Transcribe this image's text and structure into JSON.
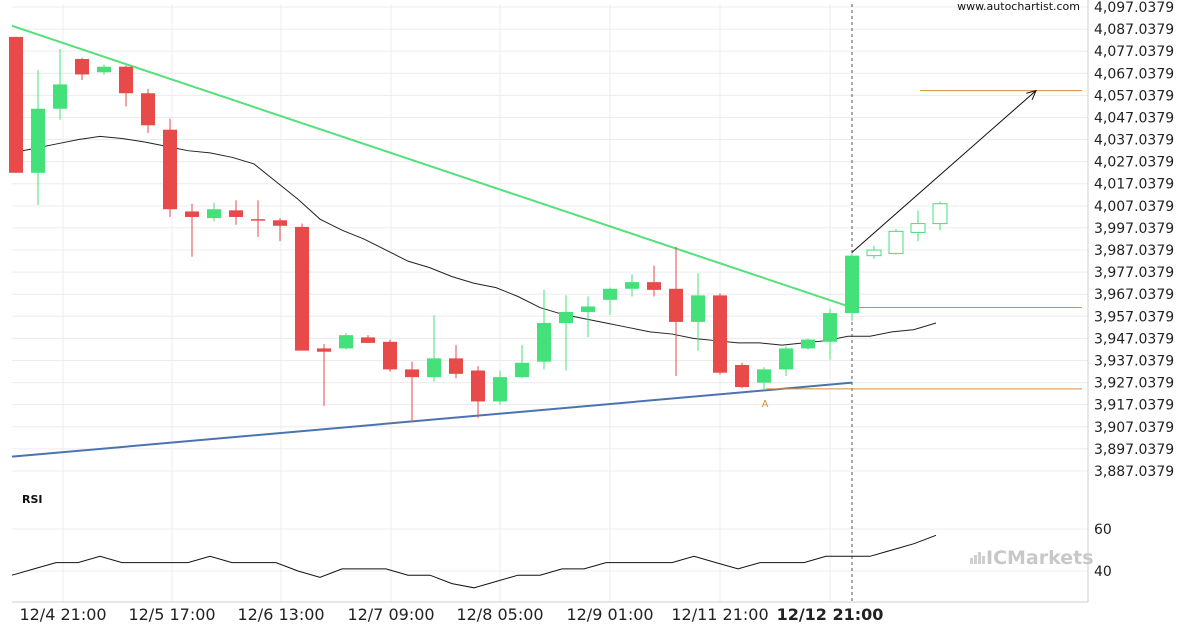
{
  "chart_data": {
    "type": "candlestick",
    "source": "www.autochartist.com",
    "brand": "ICMarkets",
    "price_axis": {
      "min": 3882.0379,
      "max": 4097.0379,
      "ticks": [
        "4,097.0379",
        "4,087.0379",
        "4,077.0379",
        "4,067.0379",
        "4,057.0379",
        "4,047.0379",
        "4,037.0379",
        "4,027.0379",
        "4,017.0379",
        "4,007.0379",
        "3,997.0379",
        "3,987.0379",
        "3,977.0379",
        "3,967.0379",
        "3,957.0379",
        "3,947.0379",
        "3,937.0379",
        "3,927.0379",
        "3,917.0379",
        "3,907.0379",
        "3,897.0379",
        "3,887.0379"
      ]
    },
    "rsi": {
      "label": "RSI",
      "ticks": [
        "60",
        "40"
      ],
      "values": [
        38,
        41,
        44,
        44,
        47,
        44,
        44,
        44,
        44,
        47,
        44,
        44,
        44,
        40,
        37,
        41,
        41,
        41,
        38,
        38,
        34,
        32,
        35,
        38,
        38,
        41,
        41,
        44,
        44,
        44,
        44,
        47,
        44,
        41,
        44,
        44,
        44,
        47,
        47,
        47,
        50,
        53,
        57
      ]
    },
    "x_ticks": [
      {
        "label": "12/4 21:00",
        "bold": false
      },
      {
        "label": "12/5 17:00",
        "bold": false
      },
      {
        "label": "12/6 13:00",
        "bold": false
      },
      {
        "label": "12/7 09:00",
        "bold": false
      },
      {
        "label": "12/8 05:00",
        "bold": false
      },
      {
        "label": "12/9 01:00",
        "bold": false
      },
      {
        "label": "12/11 21:00",
        "bold": false
      },
      {
        "label": "12/12 21:00",
        "bold": true
      }
    ],
    "candles": [
      {
        "o": 4083.5,
        "h": 4083.5,
        "l": 4022.0,
        "c": 4022.0
      },
      {
        "o": 4022.0,
        "h": 4068.5,
        "l": 4007.5,
        "c": 4051.0
      },
      {
        "o": 4051.0,
        "h": 4078.0,
        "l": 4046.0,
        "c": 4062.0
      },
      {
        "o": 4073.5,
        "h": 4074.0,
        "l": 4064.0,
        "c": 4066.5
      },
      {
        "o": 4067.5,
        "h": 4071.0,
        "l": 4066.5,
        "c": 4070.0
      },
      {
        "o": 4070.0,
        "h": 4070.5,
        "l": 4052.0,
        "c": 4058.0
      },
      {
        "o": 4058.0,
        "h": 4060.0,
        "l": 4040.0,
        "c": 4043.5
      },
      {
        "o": 4041.5,
        "h": 4046.5,
        "l": 4002.0,
        "c": 4005.5
      },
      {
        "o": 4004.5,
        "h": 4008.0,
        "l": 3984.0,
        "c": 4002.0
      },
      {
        "o": 4001.5,
        "h": 4008.5,
        "l": 4000.0,
        "c": 4005.5
      },
      {
        "o": 4005.0,
        "h": 4009.5,
        "l": 3998.5,
        "c": 4002.0
      },
      {
        "o": 4001.0,
        "h": 4009.5,
        "l": 3993.0,
        "c": 4000.5
      },
      {
        "o": 4000.5,
        "h": 4001.5,
        "l": 3991.0,
        "c": 3998.0
      },
      {
        "o": 3997.5,
        "h": 3999.0,
        "l": 3941.5,
        "c": 3941.5
      },
      {
        "o": 3942.5,
        "h": 3944.5,
        "l": 3916.5,
        "c": 3941.0
      },
      {
        "o": 3942.5,
        "h": 3949.5,
        "l": 3942.0,
        "c": 3948.5
      },
      {
        "o": 3947.5,
        "h": 3948.5,
        "l": 3945.0,
        "c": 3945.0
      },
      {
        "o": 3945.5,
        "h": 3946.5,
        "l": 3932.0,
        "c": 3933.0
      },
      {
        "o": 3933.0,
        "h": 3936.5,
        "l": 3909.0,
        "c": 3929.5
      },
      {
        "o": 3929.5,
        "h": 3957.5,
        "l": 3927.5,
        "c": 3938.0
      },
      {
        "o": 3938.0,
        "h": 3944.0,
        "l": 3929.0,
        "c": 3931.0
      },
      {
        "o": 3932.5,
        "h": 3934.5,
        "l": 3911.0,
        "c": 3918.5
      },
      {
        "o": 3918.5,
        "h": 3932.5,
        "l": 3917.0,
        "c": 3929.5
      },
      {
        "o": 3929.5,
        "h": 3944.0,
        "l": 3929.0,
        "c": 3936.0
      },
      {
        "o": 3936.5,
        "h": 3969.0,
        "l": 3933.0,
        "c": 3954.0
      },
      {
        "o": 3954.0,
        "h": 3966.5,
        "l": 3932.5,
        "c": 3959.0
      },
      {
        "o": 3959.0,
        "h": 3966.0,
        "l": 3947.5,
        "c": 3961.5
      },
      {
        "o": 3964.5,
        "h": 3970.0,
        "l": 3957.5,
        "c": 3969.5
      },
      {
        "o": 3969.5,
        "h": 3976.0,
        "l": 3966.0,
        "c": 3972.5
      },
      {
        "o": 3972.5,
        "h": 3980.0,
        "l": 3966.0,
        "c": 3969.0
      },
      {
        "o": 3969.5,
        "h": 3988.5,
        "l": 3930.0,
        "c": 3954.5
      },
      {
        "o": 3954.5,
        "h": 3976.5,
        "l": 3941.5,
        "c": 3966.5
      },
      {
        "o": 3966.5,
        "h": 3967.5,
        "l": 3930.5,
        "c": 3931.5
      },
      {
        "o": 3935.0,
        "h": 3936.0,
        "l": 3924.5,
        "c": 3925.0
      },
      {
        "o": 3927.0,
        "h": 3934.0,
        "l": 3923.5,
        "c": 3933.0
      },
      {
        "o": 3933.0,
        "h": 3943.5,
        "l": 3930.0,
        "c": 3942.5
      },
      {
        "o": 3942.5,
        "h": 3947.0,
        "l": 3942.0,
        "c": 3946.5
      },
      {
        "o": 3945.5,
        "h": 3960.5,
        "l": 3937.5,
        "c": 3958.5
      },
      {
        "o": 3958.5,
        "h": 3985.5,
        "l": 3955.0,
        "c": 3984.5
      }
    ],
    "forecast_candles": [
      {
        "o": 3984.5,
        "h": 3989.0,
        "l": 3983.0,
        "c": 3987.0
      },
      {
        "o": 3985.5,
        "h": 3996.5,
        "l": 3985.0,
        "c": 3995.5
      },
      {
        "o": 3995.0,
        "h": 4005.0,
        "l": 3991.0,
        "c": 3999.0
      },
      {
        "o": 3999.0,
        "h": 4009.0,
        "l": 3996.0,
        "c": 4008.0
      }
    ],
    "moving_average": [
      4031,
      4033,
      4035,
      4037,
      4038.5,
      4037.5,
      4036,
      4034,
      4032,
      4031,
      4029,
      4026,
      4018,
      4010,
      4001,
      3996,
      3992,
      3987,
      3982,
      3979,
      3975,
      3972,
      3970,
      3966,
      3961,
      3958,
      3956,
      3954,
      3952,
      3950,
      3949,
      3947,
      3946,
      3945,
      3945,
      3944,
      3945,
      3946,
      3948,
      3948,
      3950,
      3951,
      3954
    ],
    "resistance_line": {
      "start": [
        0,
        4088.5
      ],
      "end": [
        38,
        3961.0
      ]
    },
    "support_line": {
      "start": [
        0,
        3893.5
      ],
      "end": [
        38,
        3927.0
      ]
    },
    "levels": [
      {
        "name": "target",
        "value": 4059.2,
        "from": 41
      },
      {
        "name": "breakout",
        "value": 3961.0,
        "from": 38
      },
      {
        "name": "low",
        "value": 3924.2,
        "from": 34
      }
    ],
    "projection_arrow": {
      "start": [
        38,
        3986.0
      ],
      "end": [
        46,
        4059.2
      ]
    },
    "pattern_point_label": "A",
    "vertical_marker_index": 38
  }
}
